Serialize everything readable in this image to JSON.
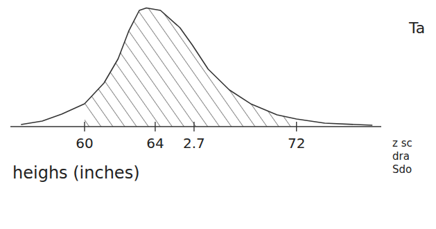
{
  "chart_data": {
    "type": "area",
    "x_label": "heighs (inches)",
    "x": [
      56.4,
      57.6,
      58.7,
      60,
      61.1,
      61.9,
      62.5,
      63.1,
      63.5,
      64.3,
      65.4,
      66.1,
      67,
      68.2,
      69.4,
      70.9,
      72,
      73.6,
      76.3
    ],
    "values": [
      1.7,
      4.6,
      10.3,
      18.9,
      36,
      56,
      78.9,
      96,
      98,
      96,
      81.7,
      67.4,
      47.4,
      30.3,
      18.9,
      9.7,
      6.3,
      2.9,
      1.1
    ],
    "color": "#333333",
    "xlim": [
      55.8,
      76.8
    ],
    "xticks": [
      60,
      64,
      72
    ],
    "ylim": [
      0,
      100
    ],
    "tick_labels": "x",
    "shaded": [
      60,
      72
    ],
    "annotations": [
      {
        "x": 66.2,
        "text": "2.7"
      }
    ],
    "side_notes": [
      "Ta",
      "z sc",
      "dra",
      "Sdo"
    ]
  }
}
